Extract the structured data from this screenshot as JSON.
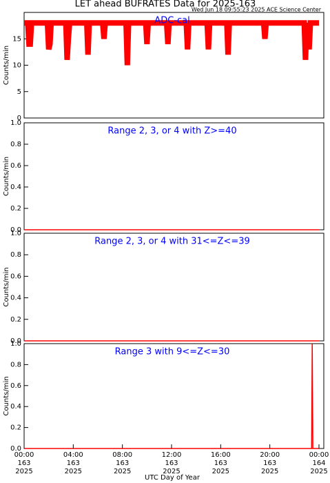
{
  "chart_data": [
    {
      "type": "line",
      "title": "LET ahead BUFRATES Data for 2025-163",
      "subtitle": "Wed Jun 18 09:55:23 2025 ACE Science Center",
      "label": "ADC-cal",
      "ylabel": "Counts/min",
      "color": "#ff0000",
      "xlim": [
        0,
        24
      ],
      "ylim": [
        0,
        20
      ],
      "yticks": [
        0,
        5,
        10,
        15
      ],
      "x": [
        0,
        0.3,
        0.4,
        0.5,
        0.6,
        1.9,
        2.0,
        2.1,
        2.2,
        3.4,
        3.5,
        3.6,
        3.7,
        5.1,
        5.2,
        5.3,
        6.4,
        6.5,
        6.6,
        8.3,
        8.4,
        8.5,
        9.9,
        10.0,
        10.1,
        11.6,
        11.7,
        11.8,
        13.2,
        13.3,
        13.4,
        14.9,
        15.0,
        15.1,
        16.5,
        16.6,
        16.7,
        19.5,
        19.6,
        19.7,
        22.8,
        22.9,
        23.0,
        23.2,
        23.3,
        24
      ],
      "values": [
        18,
        18,
        14,
        14,
        18,
        18,
        13,
        14,
        18,
        18,
        11,
        15,
        18,
        18,
        12,
        18,
        18,
        15,
        18,
        18,
        10,
        18,
        18,
        14,
        18,
        18,
        14,
        18,
        18,
        13,
        18,
        18,
        13,
        18,
        18,
        12,
        18,
        18,
        15,
        18,
        18,
        11,
        18,
        13,
        18,
        18
      ]
    },
    {
      "type": "line",
      "label": "Range 2, 3, or 4 with Z>=40",
      "ylabel": "Counts/min",
      "color": "#ff0000",
      "xlim": [
        0,
        24
      ],
      "ylim": [
        0,
        1
      ],
      "yticks": [
        {
          "value": 0,
          "label": "0.0"
        },
        {
          "value": 0.2,
          "label": "0.2"
        },
        {
          "value": 0.4,
          "label": "0.4"
        },
        {
          "value": 0.6,
          "label": "0.6"
        },
        {
          "value": 0.8,
          "label": "0.8"
        },
        {
          "value": 1,
          "label": "1.0"
        }
      ],
      "x": [
        0,
        24
      ],
      "values": [
        0,
        0
      ]
    },
    {
      "type": "line",
      "label": "Range 2, 3, or 4 with 31<=Z<=39",
      "ylabel": "Counts/min",
      "color": "#ff0000",
      "xlim": [
        0,
        24
      ],
      "ylim": [
        0,
        1
      ],
      "yticks": [
        {
          "value": 0,
          "label": "0.0"
        },
        {
          "value": 0.2,
          "label": "0.2"
        },
        {
          "value": 0.4,
          "label": "0.4"
        },
        {
          "value": 0.6,
          "label": "0.6"
        },
        {
          "value": 0.8,
          "label": "0.8"
        },
        {
          "value": 1,
          "label": "1.0"
        }
      ],
      "x": [
        0,
        24
      ],
      "values": [
        0,
        0
      ]
    },
    {
      "type": "line",
      "label": "Range 3 with 9<=Z<=30",
      "ylabel": "Counts/min",
      "xlabel": "UTC Day of Year",
      "color": "#ff0000",
      "xlim": [
        0,
        24
      ],
      "ylim": [
        0,
        1
      ],
      "yticks": [
        {
          "value": 0,
          "label": "0.0"
        },
        {
          "value": 0.2,
          "label": "0.2"
        },
        {
          "value": 0.4,
          "label": "0.4"
        },
        {
          "value": 0.6,
          "label": "0.6"
        },
        {
          "value": 0.8,
          "label": "0.8"
        },
        {
          "value": 1,
          "label": "1.0"
        }
      ],
      "xticks": [
        {
          "value": 0,
          "label": "00:00 163 2025"
        },
        {
          "value": 4,
          "label": "04:00 163 2025"
        },
        {
          "value": 8,
          "label": "08:00 163 2025"
        },
        {
          "value": 12,
          "label": "12:00 163 2025"
        },
        {
          "value": 16,
          "label": "16:00 163 2025"
        },
        {
          "value": 20,
          "label": "20:00 163 2025"
        },
        {
          "value": 24,
          "label": "00:00 164 2025"
        }
      ],
      "x": [
        0,
        23.4,
        23.45,
        23.5,
        24
      ],
      "values": [
        0,
        0,
        1,
        0,
        0
      ]
    }
  ]
}
